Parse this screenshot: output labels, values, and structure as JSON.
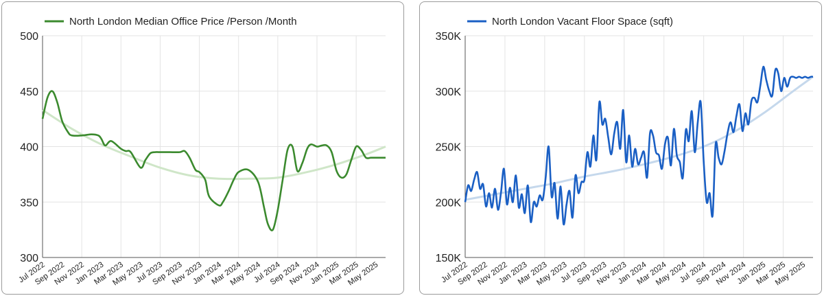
{
  "chart_data": [
    {
      "type": "line",
      "title": "",
      "xlabel": "",
      "ylabel": "",
      "ylim": [
        300,
        500
      ],
      "yticks": [
        "300",
        "350",
        "400",
        "450",
        "500"
      ],
      "xticks": [
        "Jul 2022",
        "Sep 2022",
        "Nov 2022",
        "Jan 2023",
        "Mar 2023",
        "May 2023",
        "Jul 2023",
        "Sep 2023",
        "Nov 2023",
        "Jan 2024",
        "Mar 2024",
        "May 2024",
        "Jul 2024",
        "Sep 2024",
        "Nov 2024",
        "Jan 2025",
        "Mar 2025",
        "May 2025"
      ],
      "grid": true,
      "legend_position": "top-left",
      "color": "#3b8a2e",
      "trend_color": "#cfe6c8",
      "series": [
        {
          "name": "North London Median Office Price /Person /Month",
          "x": [
            0,
            0.5,
            1,
            1.5,
            2,
            2.6,
            3,
            4,
            5,
            5.7,
            6,
            6.4,
            7,
            8,
            8.5,
            9,
            10,
            10.5,
            11,
            11.5,
            12,
            12.5,
            13,
            14,
            14.5,
            15,
            15.6,
            16,
            16.6,
            17,
            18,
            18.4,
            19,
            19.5,
            20,
            21,
            22,
            22.6,
            23,
            23.5,
            24,
            24.5,
            25,
            25.5,
            26,
            26.5,
            27,
            27.4,
            28,
            28.5,
            29,
            29.5,
            30,
            30.5,
            31,
            31.5,
            32,
            32.5,
            33,
            33.5,
            34,
            34.5,
            35
          ],
          "y": [
            425,
            444,
            450,
            440,
            423,
            413,
            410,
            410,
            411,
            410,
            407,
            401,
            405,
            398,
            396,
            395,
            381,
            388,
            394,
            395,
            395,
            395,
            395,
            395,
            396,
            390,
            379,
            377,
            370,
            355,
            347,
            350,
            360,
            370,
            377,
            379,
            368,
            345,
            330,
            325,
            343,
            370,
            397,
            400,
            378,
            385,
            398,
            402,
            400,
            401,
            401,
            395,
            378,
            372,
            375,
            388,
            400,
            397,
            390,
            390,
            390,
            390,
            390
          ]
        }
      ],
      "trendline": {
        "x": [
          0,
          3,
          6,
          9,
          12,
          15,
          18,
          21,
          24,
          27,
          30,
          33,
          35
        ],
        "y": [
          433,
          416,
          402,
          391,
          381,
          374,
          371,
          371,
          372,
          377,
          384,
          393,
          400
        ]
      }
    },
    {
      "type": "line",
      "title": "",
      "xlabel": "",
      "ylabel": "",
      "ylim": [
        150000,
        350000
      ],
      "yticks": [
        "150K",
        "200K",
        "250K",
        "300K",
        "350K"
      ],
      "xticks": [
        "Jul 2022",
        "Sep 2022",
        "Nov 2022",
        "Jan 2023",
        "Mar 2023",
        "May 2023",
        "Jul 2023",
        "Sep 2023",
        "Nov 2023",
        "Jan 2024",
        "Mar 2024",
        "May 2024",
        "Jul 2024",
        "Sep 2024",
        "Nov 2024",
        "Jan 2025",
        "Mar 2025",
        "May 2025"
      ],
      "grid": true,
      "legend_position": "top-left",
      "color": "#1a5fc4",
      "trend_color": "#c5d8ec",
      "series": [
        {
          "name": "North London Vacant Floor Space (sqft)",
          "x": [
            0,
            0.3,
            0.6,
            0.9,
            1.2,
            1.5,
            1.8,
            2.1,
            2.4,
            2.7,
            3,
            3.3,
            3.6,
            3.9,
            4.2,
            4.5,
            4.8,
            5.1,
            5.4,
            5.7,
            6,
            6.3,
            6.6,
            6.9,
            7.2,
            7.5,
            7.8,
            8.1,
            8.4,
            8.7,
            9,
            9.3,
            9.6,
            9.9,
            10.2,
            10.5,
            10.8,
            11.1,
            11.4,
            11.7,
            12,
            12.3,
            12.6,
            12.9,
            13.2,
            13.5,
            13.8,
            14.1,
            14.4,
            14.7,
            15,
            15.3,
            15.6,
            15.9,
            16.2,
            16.5,
            16.8,
            17.1,
            17.4,
            17.7,
            18,
            18.3,
            18.6,
            18.9,
            19.2,
            19.5,
            19.8,
            20.1,
            20.4,
            20.7,
            21,
            21.3,
            21.6,
            21.9,
            22.2,
            22.5,
            22.8,
            23.1,
            23.4,
            23.7,
            24,
            24.3,
            24.6,
            24.9,
            25.2,
            25.5,
            25.8,
            26.1,
            26.4,
            26.7,
            27,
            27.3,
            27.6,
            27.9,
            28.2,
            28.5,
            28.8,
            29.1,
            29.4,
            29.7,
            30,
            30.3,
            30.6,
            30.9,
            31.2,
            31.5,
            31.8,
            32.1,
            32.4,
            32.7,
            33,
            33.3,
            33.6,
            33.9,
            34.2,
            34.5,
            34.8,
            35
          ],
          "y": [
            200000,
            215000,
            210000,
            220000,
            227000,
            212000,
            216000,
            196000,
            208000,
            195000,
            212000,
            193000,
            208000,
            230000,
            198000,
            213000,
            200000,
            224000,
            195000,
            207000,
            190000,
            215000,
            182000,
            200000,
            196000,
            206000,
            202000,
            222000,
            250000,
            205000,
            217000,
            185000,
            214000,
            180000,
            198000,
            210000,
            186000,
            224000,
            208000,
            218000,
            220000,
            245000,
            232000,
            260000,
            238000,
            290000,
            270000,
            275000,
            258000,
            243000,
            262000,
            272000,
            248000,
            283000,
            236000,
            260000,
            232000,
            248000,
            234000,
            240000,
            245000,
            222000,
            262000,
            260000,
            245000,
            242000,
            230000,
            252000,
            258000,
            233000,
            266000,
            242000,
            236000,
            222000,
            265000,
            255000,
            282000,
            245000,
            272000,
            290000,
            236000,
            200000,
            208000,
            188000,
            252000,
            240000,
            234000,
            246000,
            262000,
            272000,
            263000,
            278000,
            288000,
            264000,
            280000,
            270000,
            291000,
            294000,
            290000,
            305000,
            322000,
            310000,
            300000,
            296000,
            319000,
            316000,
            300000,
            312000,
            304000,
            312000,
            313000,
            312000,
            313000,
            312000,
            313000,
            312000,
            313000,
            313000
          ]
        }
      ],
      "trendline": {
        "x": [
          0,
          3,
          6,
          9,
          12,
          15,
          18,
          21,
          24,
          27,
          30,
          33,
          35
        ],
        "y": [
          202000,
          207000,
          212000,
          217000,
          223000,
          228000,
          234000,
          241000,
          250000,
          263000,
          280000,
          300000,
          313000
        ]
      }
    }
  ]
}
